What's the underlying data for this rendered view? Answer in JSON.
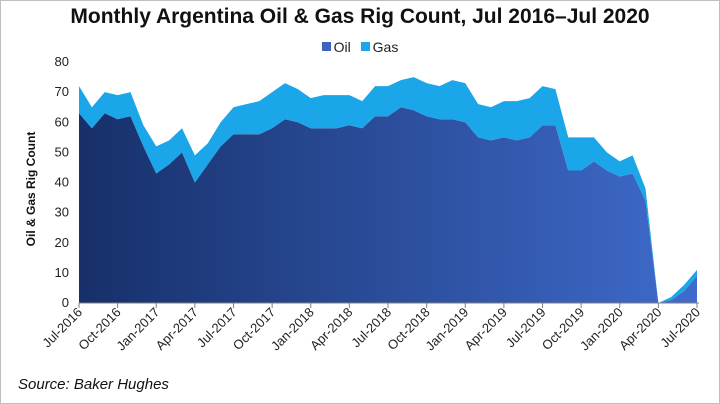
{
  "chart_data": {
    "type": "area",
    "title": "Monthly Argentina Oil & Gas Rig Count, Jul 2016–Jul 2020",
    "ylabel": "Oil & Gas Rig Count",
    "xlabel": "",
    "ylim": [
      0,
      80
    ],
    "yticks": [
      0,
      10,
      20,
      30,
      40,
      50,
      60,
      70,
      80
    ],
    "stacked": true,
    "grid": false,
    "legend_position": "top-center",
    "x_tick_labels": [
      "Jul-2016",
      "Oct-2016",
      "Jan-2017",
      "Apr-2017",
      "Jul-2017",
      "Oct-2017",
      "Jan-2018",
      "Apr-2018",
      "Jul-2018",
      "Oct-2018",
      "Jan-2019",
      "Apr-2019",
      "Jul-2019",
      "Oct-2019",
      "Jan-2020",
      "Apr-2020",
      "Jul-2020"
    ],
    "x_months": [
      "2016-07",
      "2016-08",
      "2016-09",
      "2016-10",
      "2016-11",
      "2016-12",
      "2017-01",
      "2017-02",
      "2017-03",
      "2017-04",
      "2017-05",
      "2017-06",
      "2017-07",
      "2017-08",
      "2017-09",
      "2017-10",
      "2017-11",
      "2017-12",
      "2018-01",
      "2018-02",
      "2018-03",
      "2018-04",
      "2018-05",
      "2018-06",
      "2018-07",
      "2018-08",
      "2018-09",
      "2018-10",
      "2018-11",
      "2018-12",
      "2019-01",
      "2019-02",
      "2019-03",
      "2019-04",
      "2019-05",
      "2019-06",
      "2019-07",
      "2019-08",
      "2019-09",
      "2019-10",
      "2019-11",
      "2019-12",
      "2020-01",
      "2020-02",
      "2020-03",
      "2020-04",
      "2020-05",
      "2020-06",
      "2020-07"
    ],
    "series": [
      {
        "name": "Oil",
        "color": "#3d63bd",
        "values": [
          63,
          58,
          63,
          61,
          62,
          52,
          43,
          46,
          50,
          40,
          46,
          52,
          56,
          56,
          56,
          58,
          61,
          60,
          58,
          58,
          58,
          59,
          58,
          62,
          62,
          65,
          64,
          62,
          61,
          61,
          60,
          55,
          54,
          55,
          54,
          55,
          59,
          59,
          44,
          44,
          47,
          44,
          42,
          43,
          34,
          0,
          1,
          4,
          9
        ]
      },
      {
        "name": "Gas",
        "color": "#1aa6e8",
        "values": [
          9,
          7,
          7,
          8,
          8,
          7,
          9,
          8,
          8,
          9,
          7,
          8,
          9,
          10,
          11,
          12,
          12,
          11,
          10,
          11,
          11,
          10,
          9,
          10,
          10,
          9,
          11,
          11,
          11,
          13,
          13,
          11,
          11,
          12,
          13,
          13,
          13,
          12,
          11,
          11,
          8,
          6,
          5,
          6,
          4,
          0,
          1,
          2,
          2
        ]
      }
    ],
    "source": "Source: Baker Hughes"
  },
  "colors": {
    "oil_light": "#3f6bcc",
    "oil_dark": "#17306a",
    "gas": "#1aa6e8",
    "axis": "#7f7f7f"
  }
}
